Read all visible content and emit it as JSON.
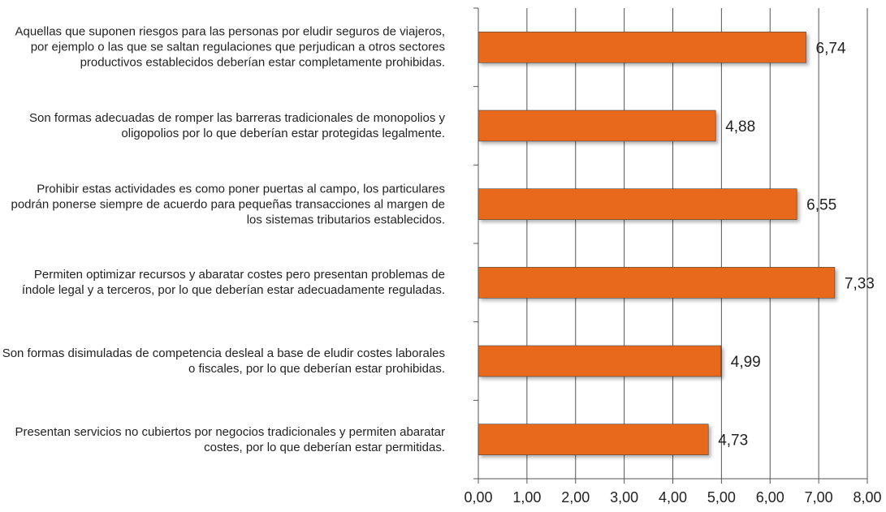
{
  "chart_data": {
    "type": "hbar",
    "categories": [
      "Aquellas que suponen riesgos para las personas por eludir seguros de viajeros, por ejemplo o las que se saltan regulaciones que perjudican a otros sectores productivos establecidos deberían estar completamente prohibidas.",
      "Son formas adecuadas de romper las barreras tradicionales de monopolios y oligopolios por lo que deberían estar protegidas legalmente.",
      "Prohibir estas actividades es como poner puertas al campo, los particulares podrán ponerse siempre de acuerdo para pequeñas transacciones al margen de los sistemas tributarios establecidos.",
      "Permiten optimizar recursos y abaratar costes pero presentan problemas de índole legal y a terceros, por lo que deberían estar adecuadamente reguladas.",
      "Son formas disimuladas de competencia desleal a base de eludir costes laborales o fiscales, por lo que deberían estar prohibidas.",
      "Presentan servicios no cubiertos por negocios tradicionales y permiten abaratar costes, por lo que deberían estar permitidas."
    ],
    "values": [
      6.74,
      4.88,
      6.55,
      7.33,
      4.99,
      4.73
    ],
    "value_labels": [
      "6,74",
      "4,88",
      "6,55",
      "7,33",
      "4,99",
      "4,73"
    ],
    "color": "#e8681f",
    "xlim": [
      0,
      8
    ],
    "xticks": [
      {
        "value": 0,
        "label": "0,00"
      },
      {
        "value": 1,
        "label": "1,00"
      },
      {
        "value": 2,
        "label": "2,00"
      },
      {
        "value": 3,
        "label": "3,00"
      },
      {
        "value": 4,
        "label": "4,00"
      },
      {
        "value": 5,
        "label": "5,00"
      },
      {
        "value": 6,
        "label": "6,00"
      },
      {
        "value": 7,
        "label": "7,00"
      },
      {
        "value": 8,
        "label": "8,00"
      }
    ],
    "grid": true
  }
}
